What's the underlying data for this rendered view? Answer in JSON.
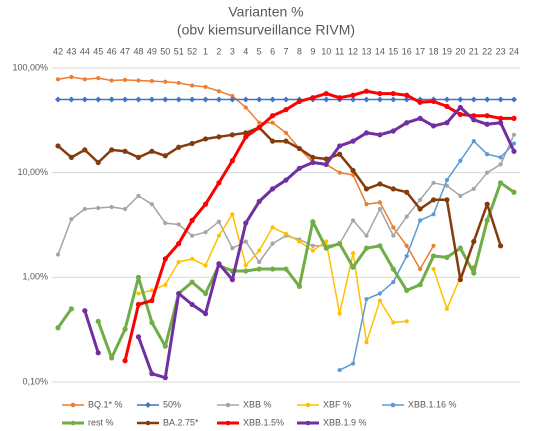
{
  "chart_data": {
    "type": "line",
    "title": "Varianten %",
    "subtitle": "(obv kiemsurveillance RIVM)",
    "categories": [
      "42",
      "43",
      "44",
      "45",
      "46",
      "47",
      "48",
      "49",
      "50",
      "51",
      "52",
      "1",
      "2",
      "3",
      "4",
      "5",
      "6",
      "7",
      "8",
      "9",
      "10",
      "11",
      "12",
      "13",
      "14",
      "15",
      "16",
      "17",
      "18",
      "19",
      "20",
      "21",
      "22",
      "23",
      "24"
    ],
    "log_scale": true,
    "grid": true,
    "legend": "bottom",
    "ylim": [
      0.1,
      100
    ],
    "yticks": [
      {
        "value": 0.1,
        "label": "0,10%"
      },
      {
        "value": 1,
        "label": "1,00%"
      },
      {
        "value": 10,
        "label": "10,00%"
      },
      {
        "value": 100,
        "label": "100,00%"
      }
    ],
    "series": [
      {
        "name": "BQ.1* %",
        "color": "#ed7d31",
        "line_width": 1.5,
        "marker": "circle",
        "values": [
          78,
          82,
          78,
          80,
          76,
          77,
          76,
          75,
          74,
          72,
          68,
          66,
          60,
          54,
          42,
          30,
          30,
          24,
          17,
          12.5,
          12,
          10,
          9.5,
          5,
          5.2,
          3,
          2,
          1.2,
          2.0,
          null,
          null,
          1.25,
          null,
          null,
          null
        ]
      },
      {
        "name": "50%",
        "color": "#4472c4",
        "line_width": 1.5,
        "marker": "diamond",
        "values": [
          50,
          50,
          50,
          50,
          50,
          50,
          50,
          50,
          50,
          50,
          50,
          50,
          50,
          50,
          50,
          50,
          50,
          50,
          50,
          50,
          50,
          50,
          50,
          50,
          50,
          50,
          50,
          50,
          50,
          50,
          50,
          50,
          50,
          50,
          50
        ]
      },
      {
        "name": "XBB %",
        "color": "#a5a5a5",
        "line_width": 1.5,
        "marker": "circle",
        "values": [
          1.65,
          3.6,
          4.5,
          4.6,
          4.7,
          4.5,
          6,
          5,
          3.3,
          3.2,
          2.5,
          2.7,
          3.4,
          1.9,
          2.2,
          1.4,
          2.1,
          2.5,
          2.3,
          2.0,
          2.0,
          2.1,
          3.5,
          2.5,
          4.5,
          2.5,
          3.8,
          5.5,
          8,
          7.5,
          6,
          7,
          10,
          12,
          23
        ]
      },
      {
        "name": "XBF %",
        "color": "#ffc000",
        "line_width": 1.5,
        "marker": "circle",
        "values": [
          null,
          null,
          null,
          null,
          null,
          null,
          0.7,
          0.75,
          0.85,
          1.4,
          1.5,
          1.3,
          2.5,
          4,
          1.3,
          1.8,
          3,
          2.6,
          2.2,
          1.8,
          2.2,
          0.45,
          1.7,
          0.24,
          0.6,
          0.37,
          0.38,
          null,
          1.2,
          0.5,
          1.0,
          null,
          null,
          null,
          null
        ]
      },
      {
        "name": "XBB.1.16 %",
        "color": "#5b9bd5",
        "line_width": 1.5,
        "marker": "circle",
        "values": [
          null,
          null,
          null,
          null,
          null,
          null,
          null,
          null,
          null,
          null,
          null,
          null,
          null,
          null,
          null,
          null,
          null,
          null,
          null,
          null,
          null,
          0.13,
          0.15,
          0.62,
          0.7,
          0.9,
          1.6,
          3.5,
          4,
          8.5,
          13,
          20,
          15,
          14,
          19
        ]
      },
      {
        "name": "rest %",
        "color": "#70ad47",
        "line_width": 3,
        "marker": "circle",
        "values": [
          0.33,
          0.5,
          null,
          0.38,
          0.17,
          0.32,
          1.0,
          0.37,
          0.22,
          0.7,
          0.9,
          0.7,
          1.3,
          1.15,
          1.15,
          1.2,
          1.2,
          1.2,
          0.82,
          3.4,
          1.9,
          2.1,
          1.25,
          1.9,
          2.0,
          1.2,
          0.75,
          0.85,
          1.6,
          1.55,
          1.9,
          1.1,
          3.5,
          8,
          6.5
        ]
      },
      {
        "name": "BA.2.75*",
        "color": "#843c0c",
        "line_width": 2.5,
        "marker": "circle",
        "values": [
          18,
          14,
          16.5,
          12.5,
          16.5,
          16,
          14,
          16,
          14.5,
          17.5,
          19,
          21,
          22,
          23,
          24,
          27,
          20,
          20,
          17,
          14,
          13.5,
          15,
          10.5,
          7,
          7.8,
          7,
          6.5,
          4.5,
          5.5,
          5.5,
          0.95,
          2.2,
          5,
          2,
          null
        ]
      },
      {
        "name": "XBB.1.5%",
        "color": "#ff0000",
        "line_width": 3,
        "marker": "circle",
        "values": [
          null,
          null,
          null,
          null,
          null,
          0.16,
          0.55,
          0.6,
          1.5,
          2.1,
          3.5,
          5,
          8,
          13,
          22,
          27,
          35,
          40,
          48,
          52,
          57,
          52,
          55,
          60,
          57,
          57,
          55,
          47,
          48,
          43,
          36,
          35,
          35,
          33,
          33
        ]
      },
      {
        "name": "XBB.1.9 %",
        "color": "#7030a0",
        "line_width": 3,
        "marker": "circle",
        "values": [
          null,
          null,
          0.48,
          0.19,
          null,
          null,
          0.27,
          0.12,
          0.11,
          0.7,
          0.55,
          0.45,
          1.35,
          0.95,
          3.3,
          5.3,
          7,
          8.5,
          11,
          12.5,
          12,
          18,
          20,
          24,
          23,
          25,
          30,
          33,
          28,
          30,
          42,
          32,
          29,
          30,
          16
        ]
      }
    ]
  }
}
